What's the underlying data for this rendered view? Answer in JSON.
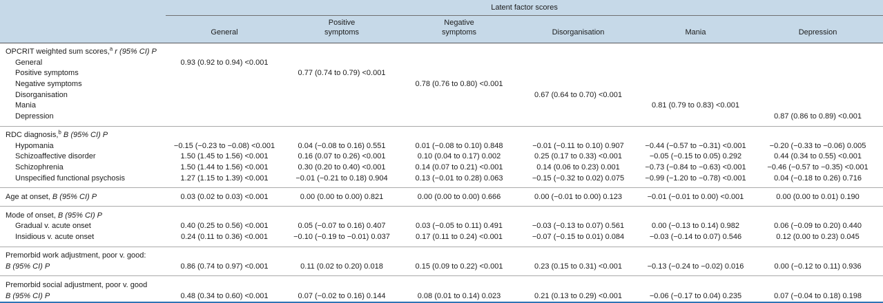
{
  "colors": {
    "header_bg": "#c6d9e8",
    "bottom_rule": "#2e74b5",
    "separator": "#a9a9a9",
    "header_rule": "#55565a",
    "spanner_rule": "#707070",
    "text": "#1b1b1b"
  },
  "table": {
    "span_title": "Latent factor scores",
    "columns": [
      {
        "lines": [
          "General"
        ]
      },
      {
        "lines": [
          "Positive",
          "symptoms"
        ]
      },
      {
        "lines": [
          "Negative",
          "symptoms"
        ]
      },
      {
        "lines": [
          "Disorganisation"
        ]
      },
      {
        "lines": [
          "Mania"
        ]
      },
      {
        "lines": [
          "Depression"
        ]
      }
    ],
    "rows": [
      {
        "label": "OPCRIT weighted sum scores,",
        "sup": "a",
        "stat": "r (95% CI) P",
        "indent": false,
        "sep": false,
        "values": [
          "",
          "",
          "",
          "",
          "",
          ""
        ]
      },
      {
        "label": "General",
        "indent": true,
        "sep": false,
        "values": [
          "0.93 (0.92 to 0.94) <0.001",
          "",
          "",
          "",
          "",
          ""
        ]
      },
      {
        "label": "Positive symptoms",
        "indent": true,
        "sep": false,
        "values": [
          "",
          "0.77 (0.74 to 0.79) <0.001",
          "",
          "",
          "",
          ""
        ]
      },
      {
        "label": "Negative symptoms",
        "indent": true,
        "sep": false,
        "values": [
          "",
          "",
          "0.78 (0.76 to 0.80) <0.001",
          "",
          "",
          ""
        ]
      },
      {
        "label": "Disorganisation",
        "indent": true,
        "sep": false,
        "values": [
          "",
          "",
          "",
          "0.67 (0.64 to 0.70) <0.001",
          "",
          ""
        ]
      },
      {
        "label": "Mania",
        "indent": true,
        "sep": false,
        "values": [
          "",
          "",
          "",
          "",
          "0.81 (0.79 to 0.83) <0.001",
          ""
        ]
      },
      {
        "label": "Depression",
        "indent": true,
        "sep": false,
        "values": [
          "",
          "",
          "",
          "",
          "",
          "0.87 (0.86 to 0.89) <0.001"
        ]
      },
      {
        "label": "RDC diagnosis,",
        "sup": "b",
        "stat": "B (95% CI) P",
        "indent": false,
        "sep": true,
        "values": [
          "",
          "",
          "",
          "",
          "",
          ""
        ]
      },
      {
        "label": "Hypomania",
        "indent": true,
        "sep": false,
        "values": [
          "−0.15 (−0.23 to −0.08) <0.001",
          "0.04 (−0.08 to 0.16) 0.551",
          "0.01 (−0.08 to 0.10) 0.848",
          "−0.01 (−0.11 to 0.10) 0.907",
          "−0.44 (−0.57 to −0.31) <0.001",
          "−0.20 (−0.33 to −0.06) 0.005"
        ]
      },
      {
        "label": "Schizoaffective disorder",
        "indent": true,
        "sep": false,
        "values": [
          "1.50 (1.45 to 1.56) <0.001",
          "0.16 (0.07 to 0.26) <0.001",
          "0.10 (0.04 to 0.17) 0.002",
          "0.25 (0.17 to 0.33) <0.001",
          "−0.05 (−0.15 to 0.05) 0.292",
          "0.44 (0.34 to 0.55) <0.001"
        ]
      },
      {
        "label": "Schizophrenia",
        "indent": true,
        "sep": false,
        "values": [
          "1.50 (1.44 to 1.56) <0.001",
          "0.30 (0.20 to 0.40) <0.001",
          "0.14 (0.07 to 0.21) <0.001",
          "0.14 (0.06 to 0.23) 0.001",
          "−0.73 (−0.84 to −0.63) <0.001",
          "−0.46 (−0.57 to −0.35) <0.001"
        ]
      },
      {
        "label": "Unspecified functional psychosis",
        "indent": true,
        "sep": false,
        "values": [
          "1.27 (1.15 to 1.39) <0.001",
          "−0.01 (−0.21 to 0.18) 0.904",
          "0.13 (−0.01 to 0.28) 0.063",
          "−0.15 (−0.32 to 0.02) 0.075",
          "−0.99 (−1.20 to −0.78) <0.001",
          "0.04 (−0.18 to 0.26) 0.716"
        ]
      },
      {
        "label": "Age at onset,",
        "stat": "B (95% CI) P",
        "indent": false,
        "sep": true,
        "values": [
          "0.03 (0.02 to 0.03) <0.001",
          "0.00 (0.00 to 0.00) 0.821",
          "0.00 (0.00 to 0.00) 0.666",
          "0.00 (−0.01 to 0.00) 0.123",
          "−0.01 (−0.01 to 0.00) <0.001",
          "0.00 (0.00 to 0.01) 0.190"
        ]
      },
      {
        "label": "Mode of onset,",
        "stat": "B (95% CI) P",
        "indent": false,
        "sep": true,
        "values": [
          "",
          "",
          "",
          "",
          "",
          ""
        ]
      },
      {
        "label": "Gradual v. acute onset",
        "indent": true,
        "sep": false,
        "values": [
          "0.40 (0.25 to 0.56) <0.001",
          "0.05 (−0.07 to 0.16) 0.407",
          "0.03 (−0.05 to 0.11) 0.491",
          "−0.03 (−0.13 to 0.07) 0.561",
          "0.00 (−0.13 to 0.14) 0.982",
          "0.06 (−0.09 to 0.20) 0.440"
        ]
      },
      {
        "label": "Insidious v. acute onset",
        "indent": true,
        "sep": false,
        "values": [
          "0.24 (0.11 to 0.36) <0.001",
          "−0.10 (−0.19 to −0.01) 0.037",
          "0.17 (0.11 to 0.24) <0.001",
          "−0.07 (−0.15 to 0.01) 0.084",
          "−0.03 (−0.14 to 0.07) 0.546",
          "0.12 (0.00 to 0.23) 0.045"
        ]
      },
      {
        "label": "Premorbid work adjustment, poor v. good:",
        "stat2": "B (95% CI) P",
        "indent": false,
        "sep": true,
        "values": [
          "0.86 (0.74 to 0.97) <0.001",
          "0.11 (0.02 to 0.20) 0.018",
          "0.15 (0.09 to 0.22) <0.001",
          "0.23 (0.15 to 0.31) <0.001",
          "−0.13 (−0.24 to −0.02) 0.016",
          "0.00 (−0.12 to 0.11) 0.936"
        ]
      },
      {
        "label": "Premorbid social adjustment, poor v. good",
        "stat2": "B (95% CI) P",
        "indent": false,
        "sep": true,
        "values": [
          "0.48 (0.34 to 0.60) <0.001",
          "0.07 (−0.02 to 0.16) 0.144",
          "0.08 (0.01 to 0.14) 0.023",
          "0.21 (0.13 to 0.29) <0.001",
          "−0.06 (−0.17 to 0.04) 0.235",
          "0.07 (−0.04 to 0.18) 0.198"
        ]
      }
    ]
  }
}
